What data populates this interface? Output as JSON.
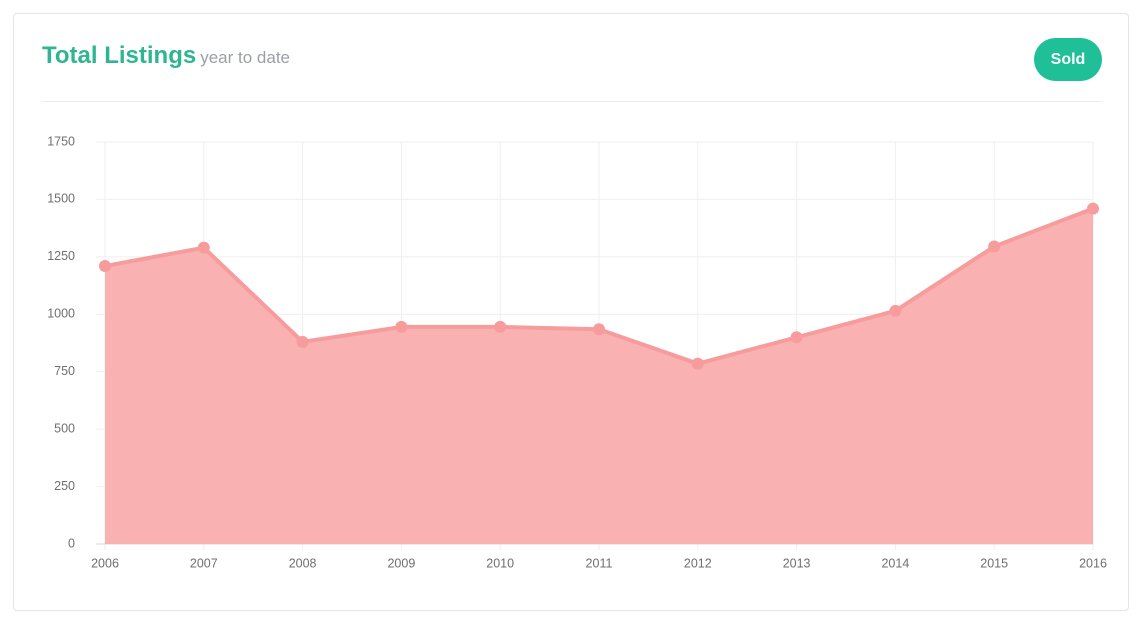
{
  "button": {
    "label": "Sold"
  },
  "chart_data": {
    "type": "area",
    "title": "Total Listings",
    "subtitle": "year to date",
    "categories": [
      "2006",
      "2007",
      "2008",
      "2009",
      "2010",
      "2011",
      "2012",
      "2013",
      "2014",
      "2015",
      "2016"
    ],
    "values": [
      1210,
      1290,
      880,
      945,
      945,
      935,
      785,
      900,
      1015,
      1295,
      1460
    ],
    "color": "#f79c9c",
    "fill": "#f9b1b1",
    "ylim": [
      0,
      1750
    ],
    "yticks": [
      0,
      250,
      500,
      750,
      1000,
      1250,
      1500,
      1750
    ],
    "grid": true
  }
}
